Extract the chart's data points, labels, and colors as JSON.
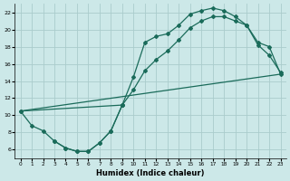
{
  "title": "",
  "xlabel": "Humidex (Indice chaleur)",
  "ylabel": "",
  "bg_color": "#cce8e8",
  "line_color": "#1a6b5a",
  "grid_color": "#aacccc",
  "xlim": [
    -0.5,
    23.5
  ],
  "ylim": [
    5,
    23
  ],
  "xticks": [
    0,
    1,
    2,
    3,
    4,
    5,
    6,
    7,
    8,
    9,
    10,
    11,
    12,
    13,
    14,
    15,
    16,
    17,
    18,
    19,
    20,
    21,
    22,
    23
  ],
  "yticks": [
    6,
    8,
    10,
    12,
    14,
    16,
    18,
    20,
    22
  ],
  "line1_x": [
    0,
    1,
    2,
    3,
    4,
    5,
    6,
    7,
    8,
    9,
    10,
    11,
    12,
    13,
    14,
    15,
    16,
    17,
    18,
    19,
    20,
    21,
    22,
    23
  ],
  "line1_y": [
    10.5,
    8.8,
    8.2,
    7.0,
    6.2,
    5.8,
    5.8,
    6.8,
    8.2,
    11.2,
    14.5,
    18.5,
    19.2,
    19.5,
    20.5,
    21.8,
    22.2,
    22.5,
    22.2,
    21.5,
    20.5,
    18.2,
    17.0,
    15.0
  ],
  "line2_x": [
    0,
    9,
    10,
    11,
    12,
    13,
    14,
    15,
    16,
    17,
    18,
    19,
    20,
    21,
    22,
    23
  ],
  "line2_y": [
    10.5,
    11.2,
    13.0,
    15.2,
    16.5,
    17.5,
    18.8,
    20.2,
    21.0,
    21.5,
    21.5,
    21.0,
    20.5,
    18.5,
    18.0,
    14.8
  ],
  "line3_x": [
    0,
    23
  ],
  "line3_y": [
    10.5,
    14.8
  ],
  "line4_x": [
    3,
    4,
    5,
    6,
    7,
    8,
    9
  ],
  "line4_y": [
    7.0,
    6.2,
    5.8,
    5.8,
    6.8,
    8.2,
    11.2
  ]
}
